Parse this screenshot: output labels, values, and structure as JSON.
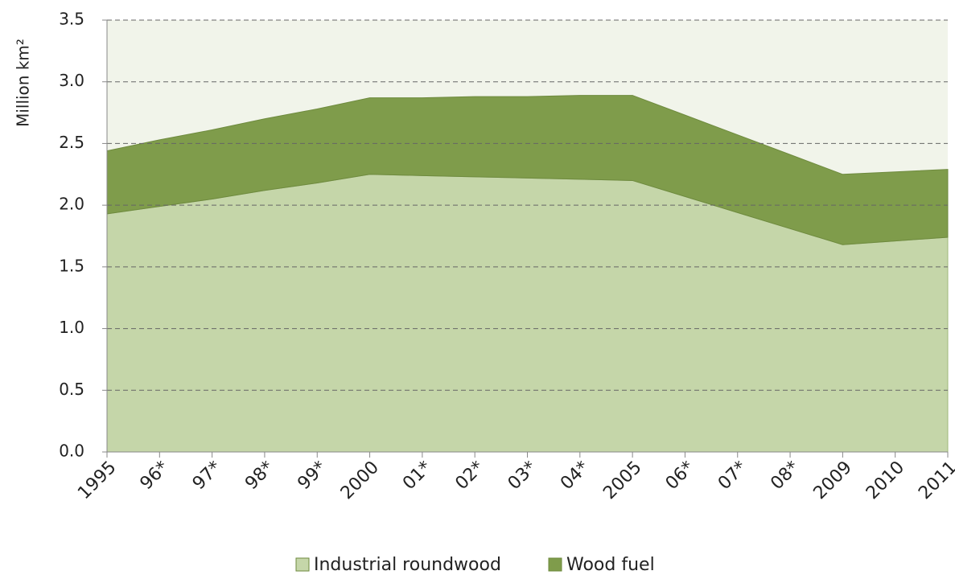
{
  "chart_data": {
    "type": "stacked-area",
    "ylabel": "Million km²",
    "categories": [
      "1995",
      "96*",
      "97*",
      "98*",
      "99*",
      "2000",
      "01*",
      "02*",
      "03*",
      "04*",
      "2005",
      "06*",
      "07*",
      "08*",
      "2009",
      "2010",
      "2011"
    ],
    "series": [
      {
        "name": "Industrial roundwood",
        "color": "#c5d6a9",
        "values": [
          1.93,
          1.99,
          2.05,
          2.12,
          2.18,
          2.25,
          2.24,
          2.23,
          2.22,
          2.21,
          2.2,
          2.07,
          1.94,
          1.81,
          1.68,
          1.71,
          1.74
        ]
      },
      {
        "name": "Wood fuel",
        "color": "#7f9c4b",
        "values": [
          0.51,
          0.54,
          0.56,
          0.58,
          0.6,
          0.62,
          0.63,
          0.65,
          0.66,
          0.68,
          0.69,
          0.66,
          0.63,
          0.6,
          0.57,
          0.56,
          0.55
        ]
      }
    ],
    "ylim": [
      0,
      3.5
    ],
    "yticks": [
      {
        "value": 0,
        "label": "0.0"
      },
      0.5,
      {
        "value": 1,
        "label": "1.0"
      },
      1.5,
      {
        "value": 2,
        "label": "2.0"
      },
      2.5,
      {
        "value": 3,
        "label": "3.0"
      },
      3.5
    ],
    "grid": true,
    "legend": "bottom"
  }
}
